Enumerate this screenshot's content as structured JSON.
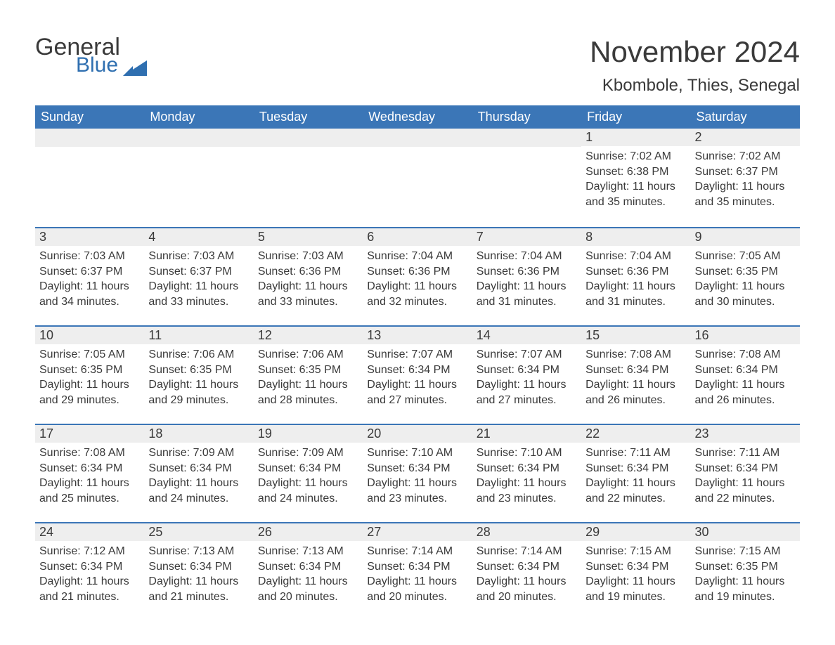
{
  "brand": {
    "word1": "General",
    "word2": "Blue",
    "word1_color": "#3a3a3a",
    "word2_color": "#2f6fb0",
    "flag_color": "#2f6fb0"
  },
  "title": "November 2024",
  "location": "Kbombole, Thies, Senegal",
  "colors": {
    "header_bg": "#3b76b7",
    "header_text": "#ffffff",
    "date_bar_bg": "#eeeeee",
    "date_bar_border": "#3b76b7",
    "body_text": "#3a3a3a",
    "page_bg": "#ffffff"
  },
  "typography": {
    "title_fontsize": 42,
    "location_fontsize": 24,
    "dayheader_fontsize": 18,
    "date_fontsize": 18,
    "body_fontsize": 16
  },
  "day_names": [
    "Sunday",
    "Monday",
    "Tuesday",
    "Wednesday",
    "Thursday",
    "Friday",
    "Saturday"
  ],
  "labels": {
    "sunrise": "Sunrise:",
    "sunset": "Sunset:",
    "daylight": "Daylight:"
  },
  "weeks": [
    [
      {
        "date": null
      },
      {
        "date": null
      },
      {
        "date": null
      },
      {
        "date": null
      },
      {
        "date": null
      },
      {
        "date": "1",
        "sunrise": "7:02 AM",
        "sunset": "6:38 PM",
        "daylight1": "11 hours",
        "daylight2": "and 35 minutes."
      },
      {
        "date": "2",
        "sunrise": "7:02 AM",
        "sunset": "6:37 PM",
        "daylight1": "11 hours",
        "daylight2": "and 35 minutes."
      }
    ],
    [
      {
        "date": "3",
        "sunrise": "7:03 AM",
        "sunset": "6:37 PM",
        "daylight1": "11 hours",
        "daylight2": "and 34 minutes."
      },
      {
        "date": "4",
        "sunrise": "7:03 AM",
        "sunset": "6:37 PM",
        "daylight1": "11 hours",
        "daylight2": "and 33 minutes."
      },
      {
        "date": "5",
        "sunrise": "7:03 AM",
        "sunset": "6:36 PM",
        "daylight1": "11 hours",
        "daylight2": "and 33 minutes."
      },
      {
        "date": "6",
        "sunrise": "7:04 AM",
        "sunset": "6:36 PM",
        "daylight1": "11 hours",
        "daylight2": "and 32 minutes."
      },
      {
        "date": "7",
        "sunrise": "7:04 AM",
        "sunset": "6:36 PM",
        "daylight1": "11 hours",
        "daylight2": "and 31 minutes."
      },
      {
        "date": "8",
        "sunrise": "7:04 AM",
        "sunset": "6:36 PM",
        "daylight1": "11 hours",
        "daylight2": "and 31 minutes."
      },
      {
        "date": "9",
        "sunrise": "7:05 AM",
        "sunset": "6:35 PM",
        "daylight1": "11 hours",
        "daylight2": "and 30 minutes."
      }
    ],
    [
      {
        "date": "10",
        "sunrise": "7:05 AM",
        "sunset": "6:35 PM",
        "daylight1": "11 hours",
        "daylight2": "and 29 minutes."
      },
      {
        "date": "11",
        "sunrise": "7:06 AM",
        "sunset": "6:35 PM",
        "daylight1": "11 hours",
        "daylight2": "and 29 minutes."
      },
      {
        "date": "12",
        "sunrise": "7:06 AM",
        "sunset": "6:35 PM",
        "daylight1": "11 hours",
        "daylight2": "and 28 minutes."
      },
      {
        "date": "13",
        "sunrise": "7:07 AM",
        "sunset": "6:34 PM",
        "daylight1": "11 hours",
        "daylight2": "and 27 minutes."
      },
      {
        "date": "14",
        "sunrise": "7:07 AM",
        "sunset": "6:34 PM",
        "daylight1": "11 hours",
        "daylight2": "and 27 minutes."
      },
      {
        "date": "15",
        "sunrise": "7:08 AM",
        "sunset": "6:34 PM",
        "daylight1": "11 hours",
        "daylight2": "and 26 minutes."
      },
      {
        "date": "16",
        "sunrise": "7:08 AM",
        "sunset": "6:34 PM",
        "daylight1": "11 hours",
        "daylight2": "and 26 minutes."
      }
    ],
    [
      {
        "date": "17",
        "sunrise": "7:08 AM",
        "sunset": "6:34 PM",
        "daylight1": "11 hours",
        "daylight2": "and 25 minutes."
      },
      {
        "date": "18",
        "sunrise": "7:09 AM",
        "sunset": "6:34 PM",
        "daylight1": "11 hours",
        "daylight2": "and 24 minutes."
      },
      {
        "date": "19",
        "sunrise": "7:09 AM",
        "sunset": "6:34 PM",
        "daylight1": "11 hours",
        "daylight2": "and 24 minutes."
      },
      {
        "date": "20",
        "sunrise": "7:10 AM",
        "sunset": "6:34 PM",
        "daylight1": "11 hours",
        "daylight2": "and 23 minutes."
      },
      {
        "date": "21",
        "sunrise": "7:10 AM",
        "sunset": "6:34 PM",
        "daylight1": "11 hours",
        "daylight2": "and 23 minutes."
      },
      {
        "date": "22",
        "sunrise": "7:11 AM",
        "sunset": "6:34 PM",
        "daylight1": "11 hours",
        "daylight2": "and 22 minutes."
      },
      {
        "date": "23",
        "sunrise": "7:11 AM",
        "sunset": "6:34 PM",
        "daylight1": "11 hours",
        "daylight2": "and 22 minutes."
      }
    ],
    [
      {
        "date": "24",
        "sunrise": "7:12 AM",
        "sunset": "6:34 PM",
        "daylight1": "11 hours",
        "daylight2": "and 21 minutes."
      },
      {
        "date": "25",
        "sunrise": "7:13 AM",
        "sunset": "6:34 PM",
        "daylight1": "11 hours",
        "daylight2": "and 21 minutes."
      },
      {
        "date": "26",
        "sunrise": "7:13 AM",
        "sunset": "6:34 PM",
        "daylight1": "11 hours",
        "daylight2": "and 20 minutes."
      },
      {
        "date": "27",
        "sunrise": "7:14 AM",
        "sunset": "6:34 PM",
        "daylight1": "11 hours",
        "daylight2": "and 20 minutes."
      },
      {
        "date": "28",
        "sunrise": "7:14 AM",
        "sunset": "6:34 PM",
        "daylight1": "11 hours",
        "daylight2": "and 20 minutes."
      },
      {
        "date": "29",
        "sunrise": "7:15 AM",
        "sunset": "6:34 PM",
        "daylight1": "11 hours",
        "daylight2": "and 19 minutes."
      },
      {
        "date": "30",
        "sunrise": "7:15 AM",
        "sunset": "6:35 PM",
        "daylight1": "11 hours",
        "daylight2": "and 19 minutes."
      }
    ]
  ]
}
